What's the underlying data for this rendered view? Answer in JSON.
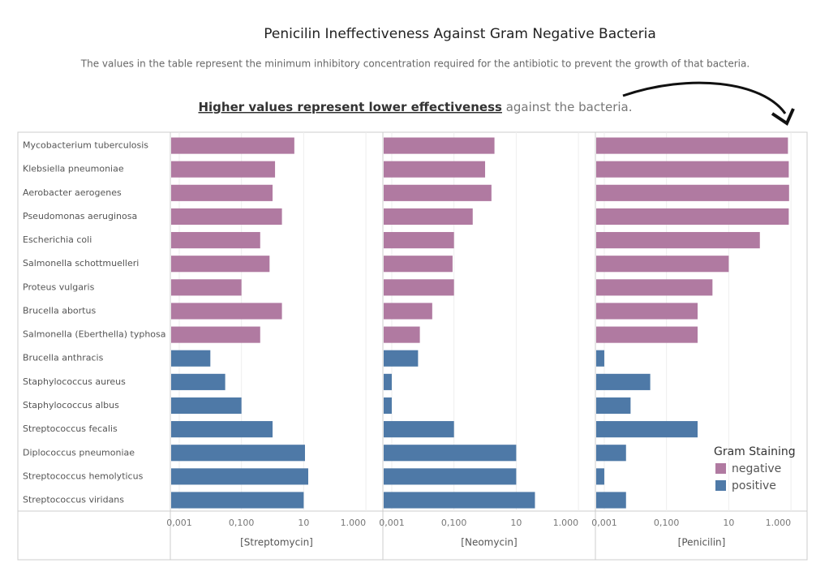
{
  "chart_data": {
    "type": "bar",
    "orientation": "horizontal",
    "title": "Penicilin Ineffectiveness Against Gram Negative Bacteria",
    "subtitle": "The values in the table represent the minimum inhibitory concentration required for the antibiotic to prevent the growth of that bacteria.",
    "annotation": {
      "emphasis": "Higher values represent lower effectiveness",
      "rest": " against the bacteria."
    },
    "categories": [
      "Mycobacterium tuberculosis",
      "Klebsiella pneumoniae",
      "Aerobacter aerogenes",
      "Pseudomonas aeruginosa",
      "Escherichia coli",
      "Salmonella schottmuelleri",
      "Proteus vulgaris",
      "Brucella abortus",
      "Salmonella (Eberthella) typhosa",
      "Brucella anthracis",
      "Staphylococcus aureus",
      "Staphylococcus albus",
      "Streptococcus fecalis",
      "Diplococcus pneumoniae",
      "Streptococcus hemolyticus",
      "Streptococcus viridans"
    ],
    "gram": [
      "negative",
      "negative",
      "negative",
      "negative",
      "negative",
      "negative",
      "negative",
      "negative",
      "negative",
      "positive",
      "positive",
      "positive",
      "positive",
      "positive",
      "positive",
      "positive"
    ],
    "series": [
      {
        "name": "[Streptomycin]",
        "values": [
          5,
          1.2,
          1,
          2,
          0.4,
          0.8,
          0.1,
          2,
          0.4,
          0.01,
          0.03,
          0.1,
          1,
          11,
          14,
          10
        ]
      },
      {
        "name": "[Neomycin]",
        "values": [
          2,
          1,
          1.6,
          0.4,
          0.1,
          0.09,
          0.1,
          0.02,
          0.008,
          0.007,
          0.001,
          0.001,
          0.1,
          10,
          10,
          40
        ]
      },
      {
        "name": "[Penicilin]",
        "values": [
          800,
          850,
          870,
          850,
          100,
          10,
          3,
          1,
          1,
          0.001,
          0.03,
          0.007,
          1,
          0.005,
          0.001,
          0.005
        ]
      }
    ],
    "xscale": "log",
    "xlim": [
      0.00055,
      3300
    ],
    "xticks": [
      {
        "value": 0.001,
        "label": "0,001"
      },
      {
        "value": 0.1,
        "label": "0,100"
      },
      10,
      {
        "value": 1000,
        "label": "1.000"
      }
    ],
    "grid": true,
    "legend": {
      "title": "Gram Staining",
      "position": "lower right",
      "items": [
        {
          "name": "negative",
          "color": "#b07aa1"
        },
        {
          "name": "positive",
          "color": "#4e79a7"
        }
      ]
    }
  }
}
